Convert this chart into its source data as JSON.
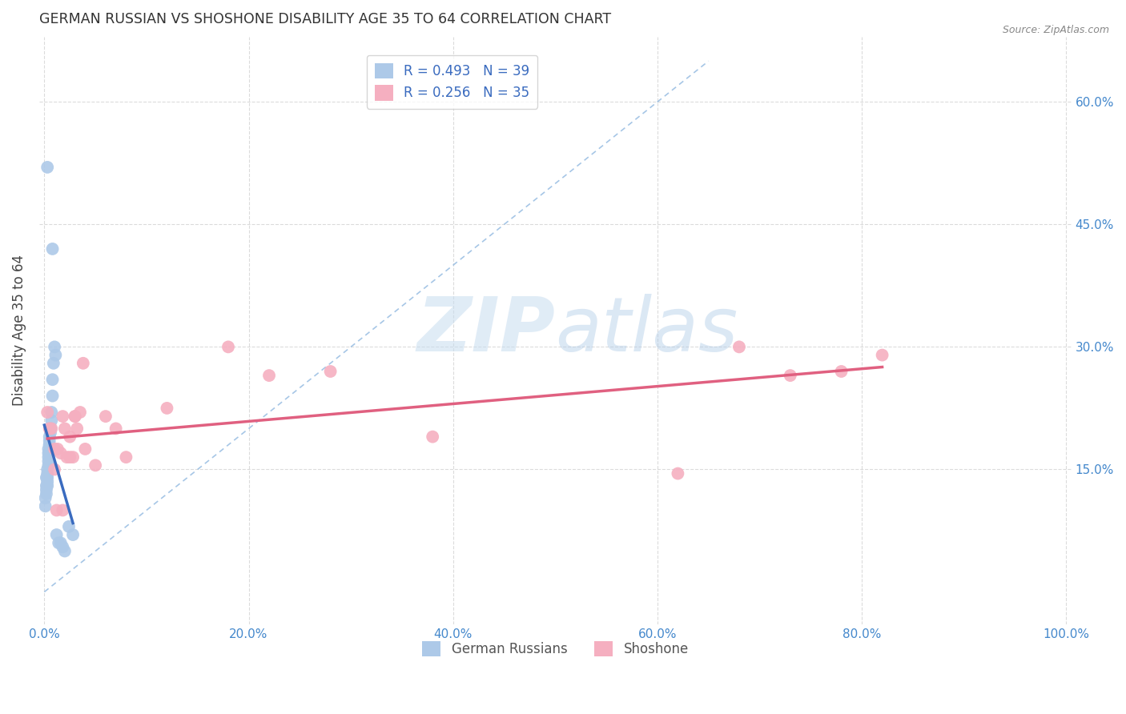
{
  "title": "GERMAN RUSSIAN VS SHOSHONE DISABILITY AGE 35 TO 64 CORRELATION CHART",
  "source": "Source: ZipAtlas.com",
  "ylabel": "Disability Age 35 to 64",
  "watermark_zip": "ZIP",
  "watermark_atlas": "atlas",
  "legend_label1": "R = 0.493   N = 39",
  "legend_label2": "R = 0.256   N = 35",
  "legend_group1": "German Russians",
  "legend_group2": "Shoshone",
  "color1": "#adc9e8",
  "color2": "#f5afc0",
  "line_color1": "#3a6bbf",
  "line_color2": "#e06080",
  "diag_color": "#90b8e0",
  "axis_label_color": "#4488cc",
  "background_color": "#ffffff",
  "grid_color": "#cccccc",
  "xlim": [
    -0.005,
    1.005
  ],
  "ylim": [
    -0.04,
    0.68
  ],
  "xticks": [
    0.0,
    0.2,
    0.4,
    0.6,
    0.8,
    1.0
  ],
  "xticklabels": [
    "0.0%",
    "20.0%",
    "40.0%",
    "60.0%",
    "80.0%",
    "100.0%"
  ],
  "yticks": [
    0.15,
    0.3,
    0.45,
    0.6
  ],
  "yticklabels": [
    "15.0%",
    "30.0%",
    "45.0%",
    "60.0%"
  ],
  "german_russian_x": [
    0.001,
    0.001,
    0.002,
    0.002,
    0.002,
    0.002,
    0.003,
    0.003,
    0.003,
    0.003,
    0.003,
    0.004,
    0.004,
    0.004,
    0.004,
    0.004,
    0.005,
    0.005,
    0.005,
    0.005,
    0.005,
    0.006,
    0.006,
    0.007,
    0.007,
    0.008,
    0.008,
    0.009,
    0.01,
    0.011,
    0.012,
    0.014,
    0.016,
    0.018,
    0.02,
    0.024,
    0.028,
    0.008,
    0.003
  ],
  "german_russian_y": [
    0.105,
    0.115,
    0.12,
    0.125,
    0.13,
    0.14,
    0.13,
    0.135,
    0.14,
    0.145,
    0.15,
    0.155,
    0.16,
    0.165,
    0.17,
    0.175,
    0.17,
    0.18,
    0.18,
    0.185,
    0.19,
    0.195,
    0.2,
    0.21,
    0.22,
    0.24,
    0.26,
    0.28,
    0.3,
    0.29,
    0.07,
    0.06,
    0.06,
    0.055,
    0.05,
    0.08,
    0.07,
    0.42,
    0.52
  ],
  "shoshone_x": [
    0.003,
    0.005,
    0.007,
    0.01,
    0.013,
    0.016,
    0.018,
    0.02,
    0.022,
    0.025,
    0.028,
    0.03,
    0.032,
    0.038,
    0.04,
    0.01,
    0.05,
    0.06,
    0.07,
    0.08,
    0.12,
    0.18,
    0.22,
    0.28,
    0.38,
    0.62,
    0.68,
    0.73,
    0.78,
    0.82,
    0.012,
    0.018,
    0.025,
    0.03,
    0.035
  ],
  "shoshone_y": [
    0.22,
    0.2,
    0.2,
    0.175,
    0.175,
    0.17,
    0.215,
    0.2,
    0.165,
    0.19,
    0.165,
    0.215,
    0.2,
    0.28,
    0.175,
    0.15,
    0.155,
    0.215,
    0.2,
    0.165,
    0.225,
    0.3,
    0.265,
    0.27,
    0.19,
    0.145,
    0.3,
    0.265,
    0.27,
    0.29,
    0.1,
    0.1,
    0.165,
    0.215,
    0.22
  ]
}
